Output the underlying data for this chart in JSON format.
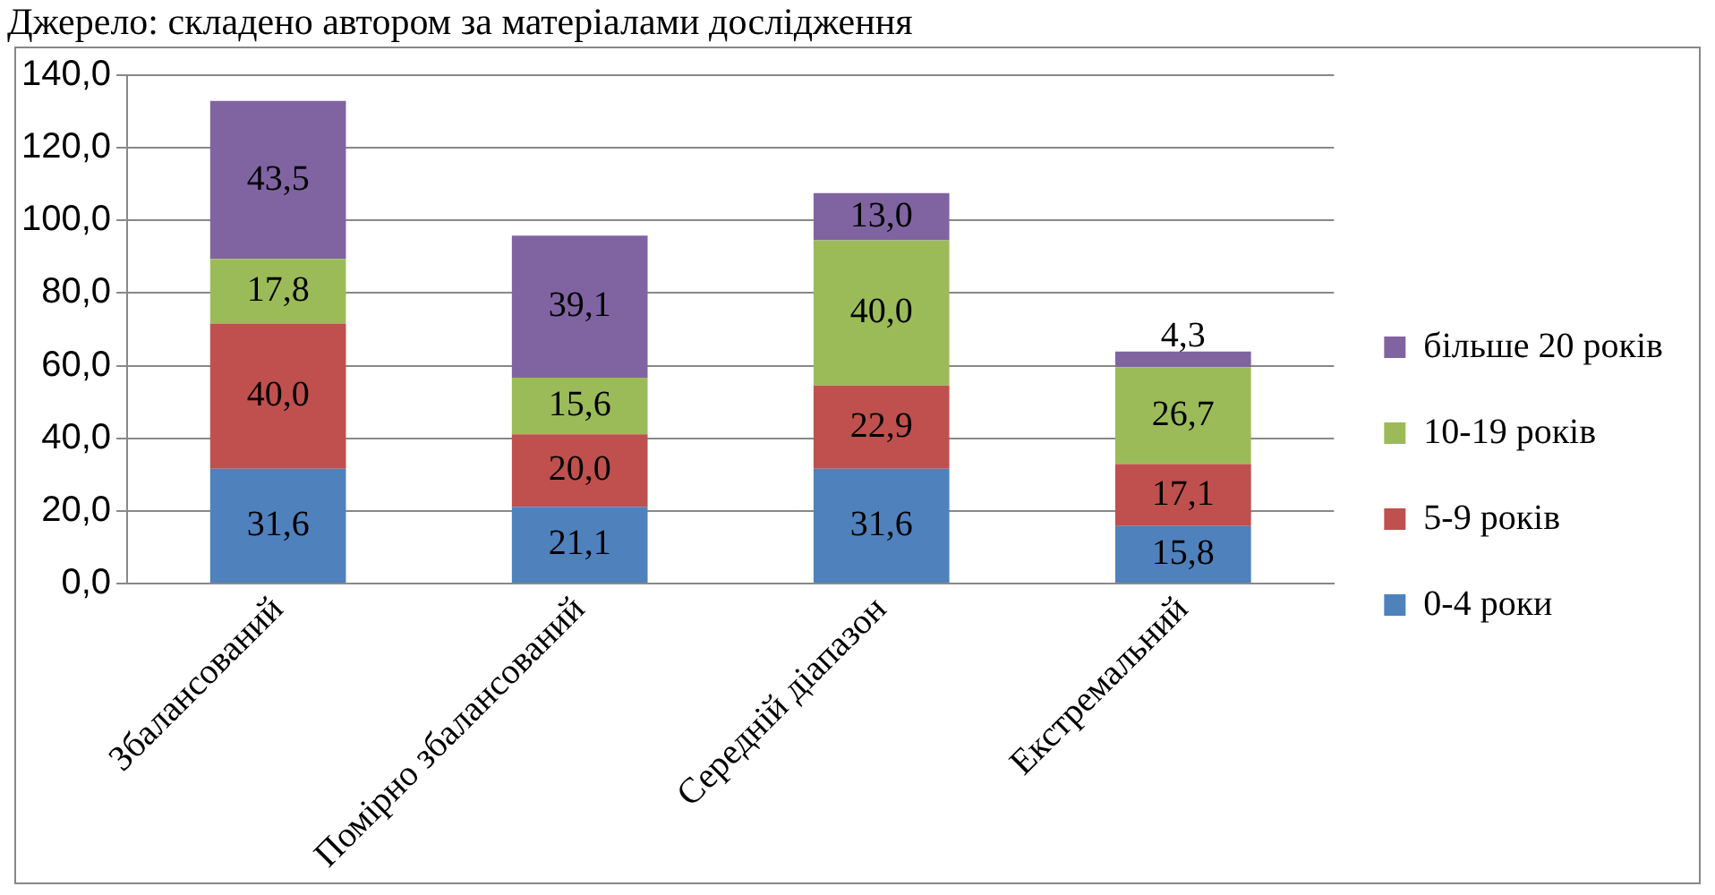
{
  "chart_data": {
    "type": "bar",
    "stacked": true,
    "annotations": [
      "Джерело: складено автором за матеріалами дослідження"
    ],
    "categories": [
      "Збалансований",
      "Помірно збалансований",
      "Середній діапазон",
      "Екстремальний"
    ],
    "series": [
      {
        "name": "0-4 роки",
        "color": "#4f81bd",
        "values": [
          31.6,
          21.1,
          31.6,
          15.8
        ],
        "value_labels": [
          "31,6",
          "21,1",
          "31,6",
          "15,8"
        ]
      },
      {
        "name": "5-9 років",
        "color": "#c0504d",
        "values": [
          40.0,
          20.0,
          22.9,
          17.1
        ],
        "value_labels": [
          "40,0",
          "20,0",
          "22,9",
          "17,1"
        ]
      },
      {
        "name": "10-19 років",
        "color": "#9bbb59",
        "values": [
          17.8,
          15.6,
          40.0,
          26.7
        ],
        "value_labels": [
          "17,8",
          "15,6",
          "40,0",
          "26,7"
        ]
      },
      {
        "name": "більше 20 років",
        "color": "#8064a2",
        "values": [
          43.5,
          39.1,
          13.0,
          4.3
        ],
        "value_labels": [
          "43,5",
          "39,1",
          "13,0",
          "4,3"
        ]
      }
    ],
    "ylim": [
      0,
      140
    ],
    "yticks": [
      {
        "value": 0,
        "label": "0,0"
      },
      {
        "value": 20,
        "label": "20,0"
      },
      {
        "value": 40,
        "label": "40,0"
      },
      {
        "value": 60,
        "label": "60,0"
      },
      {
        "value": 80,
        "label": "80,0"
      },
      {
        "value": 100,
        "label": "100,0"
      },
      {
        "value": 120,
        "label": "120,0"
      },
      {
        "value": 140,
        "label": "140,0"
      }
    ],
    "grid": "y",
    "legend": "right"
  }
}
